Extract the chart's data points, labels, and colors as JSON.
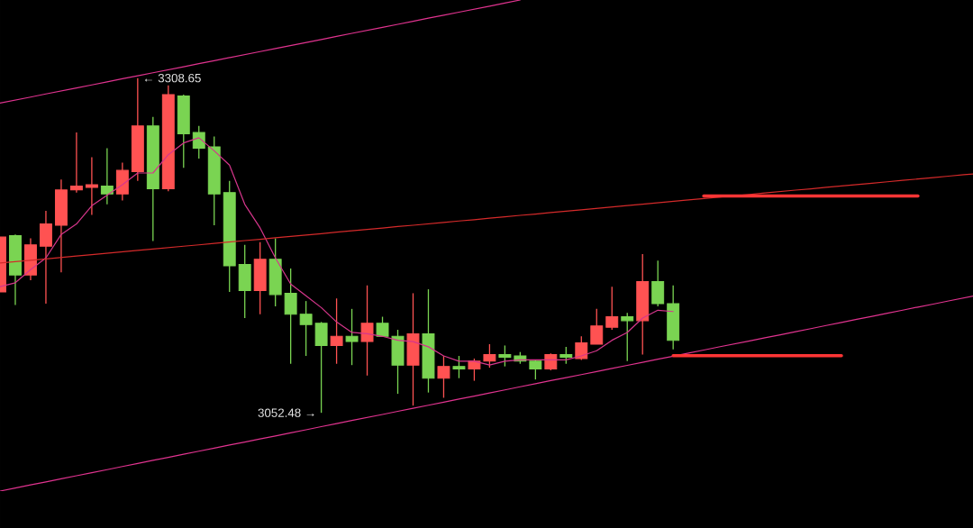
{
  "chart_data": {
    "type": "candlestick",
    "categories": [
      null,
      null,
      null,
      null,
      null,
      null,
      null,
      null,
      null,
      null,
      null,
      null,
      null,
      null,
      null,
      null,
      null,
      null,
      null,
      null,
      null,
      null,
      null,
      null,
      null,
      null,
      null,
      null,
      null,
      null,
      null,
      null,
      null,
      null,
      null,
      null,
      null,
      null,
      null,
      null,
      null,
      null,
      null,
      null,
      null,
      null,
      null,
      null,
      null,
      null,
      null,
      null,
      null,
      null,
      null,
      null,
      null,
      null,
      null,
      null,
      null,
      null,
      null,
      null,
      null
    ],
    "ohlc": [
      [
        3145,
        3187,
        3145,
        3187
      ],
      [
        3188,
        3189,
        3135,
        3158
      ],
      [
        3158,
        3186,
        3154,
        3181
      ],
      [
        3180,
        3207,
        3136,
        3197
      ],
      [
        3196,
        3231,
        3160,
        3223
      ],
      [
        3223,
        3267,
        3221,
        3226
      ],
      [
        3225,
        3248,
        3204,
        3227
      ],
      [
        3226,
        3255,
        3212,
        3220
      ],
      [
        3220,
        3244,
        3215,
        3238
      ],
      [
        3237,
        3308.65,
        3230,
        3272
      ],
      [
        3272,
        3279,
        3184,
        3224
      ],
      [
        3224,
        3303,
        3222,
        3296
      ],
      [
        3295,
        3296,
        3240,
        3266
      ],
      [
        3267,
        3272,
        3247,
        3255
      ],
      [
        3256,
        3264,
        3196,
        3220
      ],
      [
        3221,
        3230,
        3145,
        3165
      ],
      [
        3166,
        3181,
        3125,
        3146
      ],
      [
        3146,
        3183,
        3128,
        3170
      ],
      [
        3170,
        3186,
        3134,
        3143
      ],
      [
        3144,
        3163,
        3090,
        3128
      ],
      [
        3128,
        3138,
        3096,
        3120
      ],
      [
        3121,
        3122,
        3052.48,
        3104
      ],
      [
        3104,
        3140,
        3090,
        3111
      ],
      [
        3111,
        3132,
        3089,
        3107
      ],
      [
        3107,
        3150,
        3081,
        3121
      ],
      [
        3121,
        3126,
        3111,
        3111
      ],
      [
        3111,
        3116,
        3067,
        3089
      ],
      [
        3089,
        3144,
        3058,
        3113
      ],
      [
        3113,
        3147,
        3068,
        3079
      ],
      [
        3079,
        3096,
        3064,
        3088
      ],
      [
        3088,
        3096,
        3079,
        3086
      ],
      [
        3086,
        3094,
        3077,
        3092
      ],
      [
        3092,
        3105,
        3087,
        3097
      ],
      [
        3097,
        3104,
        3088,
        3095
      ],
      [
        3096,
        3099,
        3090,
        3092
      ],
      [
        3092,
        3093,
        3078,
        3086
      ],
      [
        3086,
        3098,
        3085,
        3097
      ],
      [
        3097,
        3103,
        3090,
        3095
      ],
      [
        3094,
        3111,
        3093,
        3106
      ],
      [
        3105,
        3132,
        3105,
        3119
      ],
      [
        3118,
        3149,
        3116,
        3126
      ],
      [
        3126,
        3129,
        3092,
        3123
      ],
      [
        3123,
        3174,
        3097,
        3153
      ],
      [
        3153,
        3169,
        3134,
        3136
      ],
      [
        3136,
        3150,
        3101,
        3108
      ],
      null,
      null,
      null,
      null,
      null,
      null,
      null,
      null,
      null,
      null,
      null,
      null,
      null,
      null,
      null,
      null,
      null,
      null,
      null,
      null
    ],
    "colors": [
      "#ff5252",
      "#7ad452",
      "#ff5252",
      "#ff5252",
      "#ff5252",
      "#ff5252",
      "#ff5252",
      "#7ad452",
      "#ff5252",
      "#ff5252",
      "#7ad452",
      "#ff5252",
      "#7ad452",
      "#7ad452",
      "#7ad452",
      "#7ad452",
      "#7ad452",
      "#ff5252",
      "#7ad452",
      "#7ad452",
      "#7ad452",
      "#7ad452",
      "#ff5252",
      "#7ad452",
      "#ff5252",
      "#7ad452",
      "#7ad452",
      "#ff5252",
      "#7ad452",
      "#ff5252",
      "#7ad452",
      "#ff5252",
      "#ff5252",
      "#7ad452",
      "#7ad452",
      "#7ad452",
      "#ff5252",
      "#7ad452",
      "#ff5252",
      "#ff5252",
      "#ff5252",
      "#7ad452",
      "#ff5252",
      "#7ad452",
      "#7ad452",
      null,
      null,
      null,
      null,
      null,
      null,
      null,
      null,
      null,
      null,
      null,
      null,
      null,
      null,
      null,
      null,
      null,
      null,
      null,
      null
    ],
    "series": [
      {
        "type": "line",
        "color": "#d6368c",
        "values": [
          3149,
          3152,
          3162,
          3171,
          3189,
          3197,
          3211,
          3219,
          3227,
          3236,
          3236,
          3250,
          3259,
          3263,
          3253,
          3242,
          3212,
          3194,
          3171,
          3151,
          3142,
          3133,
          3122,
          3114,
          3113,
          3111,
          3108,
          3107,
          3103,
          3096,
          3092,
          3092,
          3089,
          3092,
          3093,
          3093,
          3093,
          3093,
          3096,
          3100,
          3108,
          3114,
          3125,
          3131,
          3130,
          null,
          null,
          null,
          null,
          null,
          null,
          null,
          null,
          null,
          null,
          null,
          null,
          null,
          null,
          null,
          null,
          null,
          null,
          null,
          null
        ]
      },
      {
        "type": "line",
        "color": "#e0338f",
        "values": [
          3289.5,
          3291.8,
          3294.1,
          3296.5,
          3298.8,
          3301.1,
          3303.4,
          3305.7,
          3308.1,
          3310.4,
          3312.7,
          3315.0,
          3317.3,
          3319.7,
          3322.0,
          3324.3,
          3326.6,
          3328.9,
          3331.3,
          3333.6,
          3335.9,
          3338.2,
          3340.5,
          3342.9,
          3345.2,
          3347.5,
          3349.8,
          3352.1,
          3354.5,
          3356.8,
          3359.1,
          3361.4,
          3363.7,
          3366.1,
          3368.4,
          null,
          null,
          null,
          null,
          null,
          null,
          null,
          null,
          null,
          null,
          null,
          null,
          null,
          null,
          null,
          null,
          null,
          null,
          null,
          null,
          null,
          null,
          null,
          null,
          null,
          null,
          null,
          null,
          null,
          null
        ]
      },
      {
        "type": "line",
        "color": "#d42a2a",
        "values": [
          3167.1,
          3168.2,
          3169.2,
          3170.3,
          3171.4,
          3172.5,
          3173.5,
          3174.6,
          3175.7,
          3176.8,
          3177.8,
          3178.9,
          3180.0,
          3181.0,
          3182.1,
          3183.2,
          3184.3,
          3185.3,
          3186.4,
          3187.5,
          3188.5,
          3189.6,
          3190.7,
          3191.8,
          3192.8,
          3193.9,
          3195.0,
          3196.0,
          3197.1,
          3198.2,
          3199.3,
          3200.3,
          3201.4,
          3202.5,
          3203.6,
          3204.6,
          3205.7,
          3206.8,
          3207.8,
          3208.9,
          3210.0,
          3211.1,
          3212.1,
          3213.2,
          3214.3,
          3215.4,
          3216.4,
          3217.5,
          3218.6,
          3219.6,
          3220.7,
          3221.8,
          3222.9,
          3223.9,
          3225.0,
          3226.1,
          3227.1,
          3228.2,
          3229.3,
          3230.4,
          3231.4,
          3232.5,
          3233.6,
          3234.7,
          3235.7
        ]
      },
      {
        "type": "line",
        "color": "#e0338f",
        "values": [
          2992.6,
          2994.9,
          2997.3,
          2999.6,
          3002.0,
          3004.3,
          3006.7,
          3009.0,
          3011.4,
          3013.7,
          3016.1,
          3018.4,
          3020.8,
          3023.1,
          3025.4,
          3027.8,
          3030.1,
          3032.5,
          3034.8,
          3037.2,
          3039.5,
          3041.9,
          3044.2,
          3046.6,
          3048.9,
          3051.2,
          3053.6,
          3055.9,
          3058.3,
          3060.6,
          3063.0,
          3065.3,
          3067.7,
          3070.0,
          3072.4,
          3074.7,
          3077.1,
          3079.4,
          3081.7,
          3084.1,
          3086.4,
          3088.8,
          3091.1,
          3093.5,
          3095.8,
          3098.2,
          3100.5,
          3102.9,
          3105.2,
          3107.5,
          3109.9,
          3112.2,
          3114.6,
          3116.9,
          3119.3,
          3121.6,
          3124.0,
          3126.3,
          3128.7,
          3131.0,
          3133.4,
          3135.7,
          3138.1,
          3140.4,
          3142.7
        ]
      },
      {
        "type": "line",
        "color": "#ff3535",
        "values": [
          null,
          null,
          null,
          null,
          null,
          null,
          null,
          null,
          null,
          null,
          null,
          null,
          null,
          null,
          null,
          null,
          null,
          null,
          null,
          null,
          null,
          null,
          null,
          null,
          null,
          null,
          null,
          null,
          null,
          null,
          null,
          null,
          null,
          null,
          null,
          null,
          null,
          null,
          null,
          null,
          null,
          null,
          null,
          null,
          null,
          null,
          3218.4,
          3218.4,
          3218.4,
          3218.4,
          3218.4,
          3218.4,
          3218.4,
          3218.4,
          3218.4,
          3218.4,
          3218.4,
          3218.4,
          3218.4,
          3218.4,
          3218.4,
          null,
          null,
          null,
          null
        ]
      },
      {
        "type": "line",
        "color": "#ff3535",
        "values": [
          null,
          null,
          null,
          null,
          null,
          null,
          null,
          null,
          null,
          null,
          null,
          null,
          null,
          null,
          null,
          null,
          null,
          null,
          null,
          null,
          null,
          null,
          null,
          null,
          null,
          null,
          null,
          null,
          null,
          null,
          null,
          null,
          null,
          null,
          null,
          null,
          null,
          null,
          null,
          null,
          null,
          null,
          null,
          null,
          3096.2,
          3096.2,
          3096.2,
          3096.2,
          3096.2,
          3096.2,
          3096.2,
          3096.2,
          3096.2,
          3096.2,
          3096.2,
          3096.2,
          null,
          null,
          null,
          null,
          null,
          null,
          null,
          null,
          null
        ]
      }
    ],
    "annotations": [
      "← 3308.65",
      "3052.48 →"
    ]
  }
}
